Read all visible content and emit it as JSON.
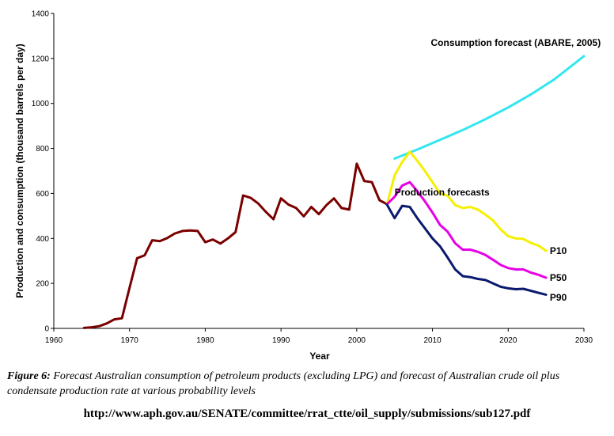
{
  "chart_data": {
    "type": "line",
    "xlabel": "Year",
    "ylabel": "Production and consumption (thousand barrels per day)",
    "xlim": [
      1960,
      2030
    ],
    "ylim": [
      0,
      1400
    ],
    "xticks": [
      1960,
      1970,
      1980,
      1990,
      2000,
      2010,
      2020,
      2030
    ],
    "yticks": [
      0,
      200,
      400,
      600,
      800,
      1000,
      1200,
      1400
    ],
    "grid": false,
    "legend": "none",
    "series": [
      {
        "name": "Consumption forecast (ABARE, 2005)",
        "color": "#33e6f0",
        "x": [
          2005,
          2008,
          2011,
          2014,
          2017,
          2020,
          2023,
          2026,
          2030
        ],
        "y": [
          755,
          795,
          838,
          882,
          930,
          982,
          1040,
          1105,
          1210
        ]
      },
      {
        "name": "",
        "color": "#7a0000",
        "x": [
          1964,
          1965,
          1966,
          1967,
          1968,
          1969,
          1970,
          1971,
          1972,
          1973,
          1974,
          1975,
          1976,
          1977,
          1978,
          1979,
          1980,
          1981,
          1982,
          1983,
          1984,
          1985,
          1986,
          1987,
          1988,
          1989,
          1990,
          1991,
          1992,
          1993,
          1994,
          1995,
          1996,
          1997,
          1998,
          1999,
          2000,
          2001,
          2002,
          2003,
          2004
        ],
        "y": [
          2,
          5,
          10,
          22,
          40,
          45,
          180,
          312,
          325,
          392,
          388,
          402,
          422,
          433,
          435,
          433,
          383,
          395,
          377,
          400,
          428,
          591,
          580,
          555,
          518,
          485,
          578,
          550,
          535,
          498,
          540,
          508,
          548,
          578,
          535,
          528,
          732,
          655,
          650,
          570,
          552
        ]
      },
      {
        "name": "P10",
        "color": "#f5f000",
        "x": [
          2004,
          2005,
          2006,
          2007,
          2008,
          2009,
          2010,
          2011,
          2012,
          2013,
          2014,
          2015,
          2016,
          2017,
          2018,
          2019,
          2020,
          2021,
          2022,
          2023,
          2024,
          2025
        ],
        "y": [
          552,
          680,
          740,
          785,
          745,
          700,
          650,
          600,
          590,
          548,
          535,
          540,
          528,
          505,
          480,
          440,
          410,
          400,
          398,
          380,
          368,
          345
        ]
      },
      {
        "name": "P50",
        "color": "#e800e8",
        "x": [
          2004,
          2005,
          2006,
          2007,
          2008,
          2009,
          2010,
          2011,
          2012,
          2013,
          2014,
          2015,
          2016,
          2017,
          2018,
          2019,
          2020,
          2021,
          2022,
          2023,
          2024,
          2025
        ],
        "y": [
          552,
          585,
          635,
          650,
          610,
          565,
          515,
          460,
          430,
          378,
          350,
          350,
          340,
          326,
          305,
          282,
          268,
          262,
          262,
          248,
          238,
          225
        ]
      },
      {
        "name": "P90",
        "color": "#0a1a6e",
        "x": [
          2004,
          2005,
          2006,
          2007,
          2008,
          2009,
          2010,
          2011,
          2012,
          2013,
          2014,
          2015,
          2016,
          2017,
          2018,
          2019,
          2020,
          2021,
          2022,
          2023,
          2024,
          2025
        ],
        "y": [
          550,
          490,
          545,
          540,
          490,
          445,
          400,
          365,
          315,
          262,
          232,
          228,
          220,
          215,
          200,
          185,
          178,
          174,
          176,
          167,
          158,
          150
        ]
      }
    ],
    "annotations": [
      {
        "text": "Consumption forecast (ABARE, 2005)",
        "x": 2021,
        "y": 1270,
        "anchor": "middle"
      },
      {
        "text": "Production forecasts",
        "x": 2005,
        "y": 605,
        "anchor": "start"
      },
      {
        "text": "P10",
        "x": 2025.5,
        "y": 345,
        "anchor": "start"
      },
      {
        "text": "P50",
        "x": 2025.5,
        "y": 225,
        "anchor": "start"
      },
      {
        "text": "P90",
        "x": 2025.5,
        "y": 137,
        "anchor": "start"
      }
    ]
  },
  "caption": {
    "label": "Figure 6:",
    "text": " Forecast Australian consumption of petroleum products (excluding LPG) and forecast of Australian crude oil plus condensate production rate at various probability levels"
  },
  "source_url": "http://www.aph.gov.au/SENATE/committee/rrat_ctte/oil_supply/submissions/sub127.pdf"
}
